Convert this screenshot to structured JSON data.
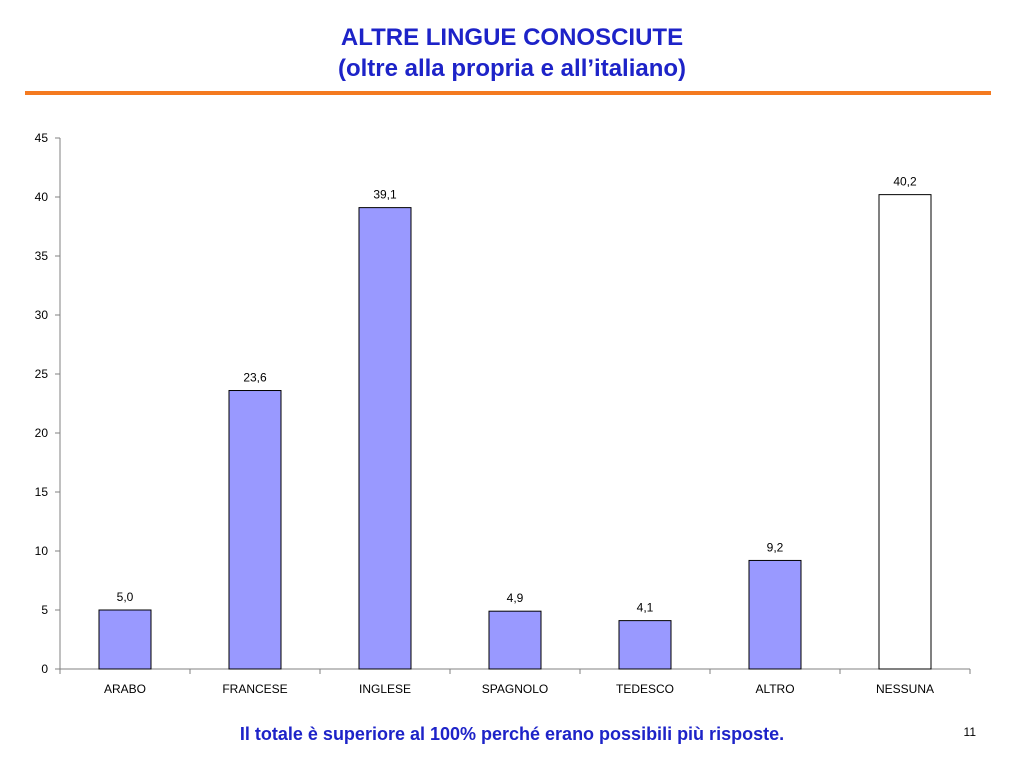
{
  "slide": {
    "title_line1": "ALTRE LINGUE CONOSCIUTE",
    "title_line2": "(oltre alla propria e all’italiano)",
    "footnote": "Il totale è superiore al 100% perché erano possibili più risposte.",
    "page_number": "11",
    "title_color": "#1d23c8",
    "rule_color": "#f47a20"
  },
  "chart_data": {
    "type": "bar",
    "categories": [
      "ARABO",
      "FRANCESE",
      "INGLESE",
      "SPAGNOLO",
      "TEDESCO",
      "ALTRO",
      "NESSUNA"
    ],
    "values": [
      5.0,
      23.6,
      39.1,
      4.9,
      4.1,
      9.2,
      40.2
    ],
    "data_labels": [
      "5,0",
      "23,6",
      "39,1",
      "4,9",
      "4,1",
      "9,2",
      "40,2"
    ],
    "bar_colors": [
      "#9999ff",
      "#9999ff",
      "#9999ff",
      "#9999ff",
      "#9999ff",
      "#9999ff",
      "#ffffff"
    ],
    "bar_border_color": "#000000",
    "title": "",
    "xlabel": "",
    "ylabel": "",
    "ylim": [
      0,
      45
    ],
    "yticks": [
      0,
      5,
      10,
      15,
      20,
      25,
      30,
      35,
      40,
      45
    ],
    "grid": false,
    "legend": "none"
  }
}
